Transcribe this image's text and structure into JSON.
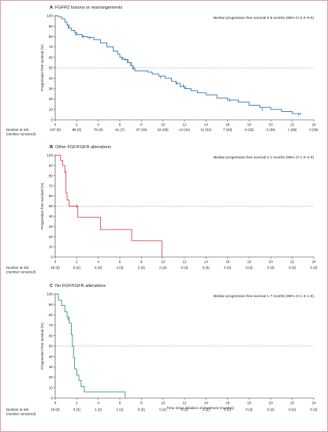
{
  "chart_data": [
    {
      "type": "line",
      "letter": "A",
      "title": "FGFR2 fusions or rearrangements",
      "median_text": "Median progression-free survival 6·9 months (95% CI 6·2–9·6)",
      "ylabel": "Progression-free survival (%)",
      "xlabel": "",
      "xlim": [
        0,
        24
      ],
      "ylim": [
        0,
        100
      ],
      "x_ticks": [
        0,
        2,
        4,
        6,
        8,
        10,
        12,
        14,
        16,
        18,
        20,
        22,
        24
      ],
      "y_ticks": [
        0,
        10,
        20,
        30,
        40,
        50,
        60,
        70,
        80,
        90,
        100
      ],
      "reference_line": 50,
      "color": "#2f78b4",
      "series": [
        {
          "x": [
            0,
            0.3,
            0.6,
            0.9,
            1.1,
            1.3,
            1.5,
            1.8,
            2.0,
            2.5,
            3.0,
            3.6,
            4.2,
            4.8,
            5.4,
            5.8,
            6.0,
            6.3,
            6.7,
            7.0,
            7.2,
            7.4,
            7.7,
            8.0,
            8.6,
            9.0,
            9.6,
            10.2,
            10.8,
            11.2,
            11.6,
            12.0,
            12.6,
            13.2,
            14.0,
            15.0,
            16.0,
            17.0,
            18.0,
            19.0,
            20.0,
            21.0,
            22.0,
            22.8
          ],
          "y": [
            100,
            99,
            97,
            94,
            91,
            88,
            86,
            84,
            82,
            80,
            79,
            77,
            74,
            70,
            66,
            63,
            60,
            58,
            55,
            52,
            49,
            47,
            47,
            47,
            46,
            44,
            42,
            40,
            37,
            35,
            32,
            30,
            28,
            26,
            24,
            21,
            19,
            17,
            14,
            12,
            10,
            8,
            6,
            5
          ]
        }
      ],
      "censor_marks": {
        "x": [
          1.2,
          1.9,
          2.6,
          3.2,
          6.2,
          6.5,
          6.8,
          7.1,
          7.3,
          9.8,
          11.3,
          11.9,
          12.1,
          16.2,
          19.2,
          22.6
        ],
        "y": [
          89,
          82,
          80,
          79,
          59,
          58,
          57,
          54,
          50,
          41,
          35,
          33,
          31,
          19,
          10,
          5
        ]
      },
      "risk_table": {
        "label": "Number at risk\n(number censored)",
        "values": [
          "107 (0)",
          "88 (3)",
          "76 (9)",
          "61 (7)",
          "37 (19)",
          "22 (28)",
          "14 (31)",
          "11 (31)",
          "7 (33)",
          "4 (33)",
          "2 (35)",
          "1 (35)",
          "0 (35)"
        ]
      }
    },
    {
      "type": "line",
      "letter": "B",
      "title": "Other FGF/FGFR alterations",
      "median_text": "Median progression-free survival 2·1 months (95% CI 1·2–4·9)",
      "ylabel": "Progression-free survival (%)",
      "xlabel": "",
      "xlim": [
        0,
        24
      ],
      "ylim": [
        0,
        100
      ],
      "x_ticks": [
        0,
        2,
        4,
        6,
        8,
        10,
        12,
        14,
        16,
        18,
        20,
        22,
        24
      ],
      "y_ticks": [
        0,
        10,
        20,
        30,
        40,
        50,
        60,
        70,
        80,
        90,
        100
      ],
      "reference_line": 50,
      "color": "#e04a4a",
      "series": [
        {
          "x": [
            0,
            0.5,
            0.7,
            0.9,
            1.0,
            1.1,
            1.3,
            1.9,
            2.1,
            4.0,
            4.2,
            6.9,
            7.1,
            9.9
          ],
          "y": [
            100,
            95,
            90,
            84,
            63,
            56,
            50,
            50,
            39,
            39,
            27,
            27,
            16,
            0
          ]
        }
      ],
      "censor_marks": {
        "x": [
          0.9,
          2.0
        ],
        "y": [
          84,
          50
        ]
      },
      "risk_table": {
        "label": "Number at risk\n(number censored)",
        "values": [
          "20 (0)",
          "9 (2)",
          "6 (3)",
          "4 (3)",
          "2 (3)",
          "0 (3)",
          "0 (3)",
          "0 (3)",
          "0 (3)",
          "0 (3)",
          "0 (3)",
          "0 (3)",
          "0 (3)"
        ]
      }
    },
    {
      "type": "line",
      "letter": "C",
      "title": "No FGF/FGFR alterations",
      "median_text": "Median progression-free survival 1·7 months (95% CI 1·3–1·8)",
      "ylabel": "Progression-free survival (%)",
      "xlabel": "Time since initiation of treatment (months)",
      "xlim": [
        0,
        24
      ],
      "ylim": [
        0,
        100
      ],
      "x_ticks": [
        0,
        2,
        4,
        6,
        8,
        10,
        12,
        14,
        16,
        18,
        20,
        22,
        24
      ],
      "y_ticks": [
        0,
        10,
        20,
        30,
        40,
        50,
        60,
        70,
        80,
        90,
        100
      ],
      "reference_line": 50,
      "color": "#2e9e7a",
      "series": [
        {
          "x": [
            0,
            0.3,
            0.6,
            0.9,
            1.1,
            1.3,
            1.5,
            1.6,
            1.7,
            1.8,
            2.0,
            2.2,
            2.4,
            2.7,
            3.0,
            6.5
          ],
          "y": [
            100,
            94,
            89,
            83,
            78,
            72,
            61,
            50,
            39,
            28,
            22,
            17,
            11,
            6,
            6,
            0
          ]
        }
      ],
      "censor_marks": {
        "x": [
          1.2
        ],
        "y": [
          76
        ]
      },
      "risk_table": {
        "label": "Number at risk\n(number censored)",
        "values": [
          "18 (0)",
          "3 (2)",
          "1 (2)",
          "1 (2)",
          "0 (2)",
          "0 (2)",
          "0 (2)",
          "0 (2)",
          "0 (2)",
          "0 (2)",
          "0 (2)",
          "0 (2)",
          "0 (2)"
        ]
      }
    }
  ]
}
